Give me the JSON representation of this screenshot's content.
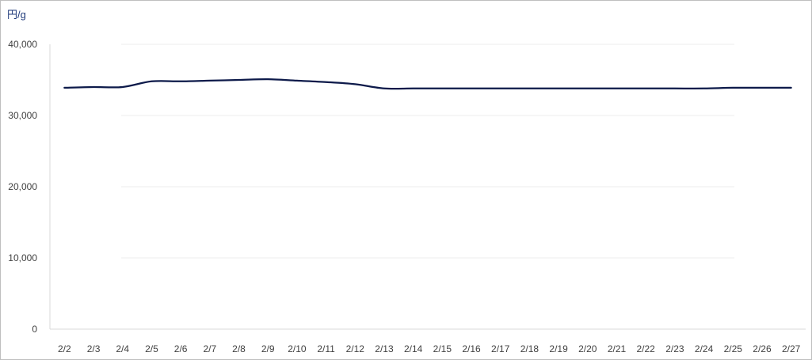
{
  "chart_data": {
    "type": "line",
    "unit_label": "円/g",
    "categories": [
      "2/2",
      "2/3",
      "2/4",
      "2/5",
      "2/6",
      "2/7",
      "2/8",
      "2/9",
      "2/10",
      "2/11",
      "2/12",
      "2/13",
      "2/14",
      "2/15",
      "2/16",
      "2/17",
      "2/18",
      "2/19",
      "2/20",
      "2/21",
      "2/22",
      "2/23",
      "2/24",
      "2/25",
      "2/26",
      "2/27"
    ],
    "series": [
      {
        "values": [
          33900,
          34000,
          34000,
          34800,
          34800,
          34900,
          35000,
          35100,
          34900,
          34700,
          34400,
          33800,
          33800,
          33800,
          33800,
          33800,
          33800,
          33800,
          33800,
          33800,
          33800,
          33800,
          33800,
          33900,
          33900,
          33900
        ],
        "color": "#0d1a4a"
      }
    ],
    "ylim": [
      0,
      40000
    ],
    "y_ticks": [
      0,
      10000,
      20000,
      30000,
      40000
    ],
    "y_tick_labels": [
      "0",
      "10,000",
      "20,000",
      "30,000",
      "40,000"
    ],
    "grid": true,
    "legend": "none"
  }
}
